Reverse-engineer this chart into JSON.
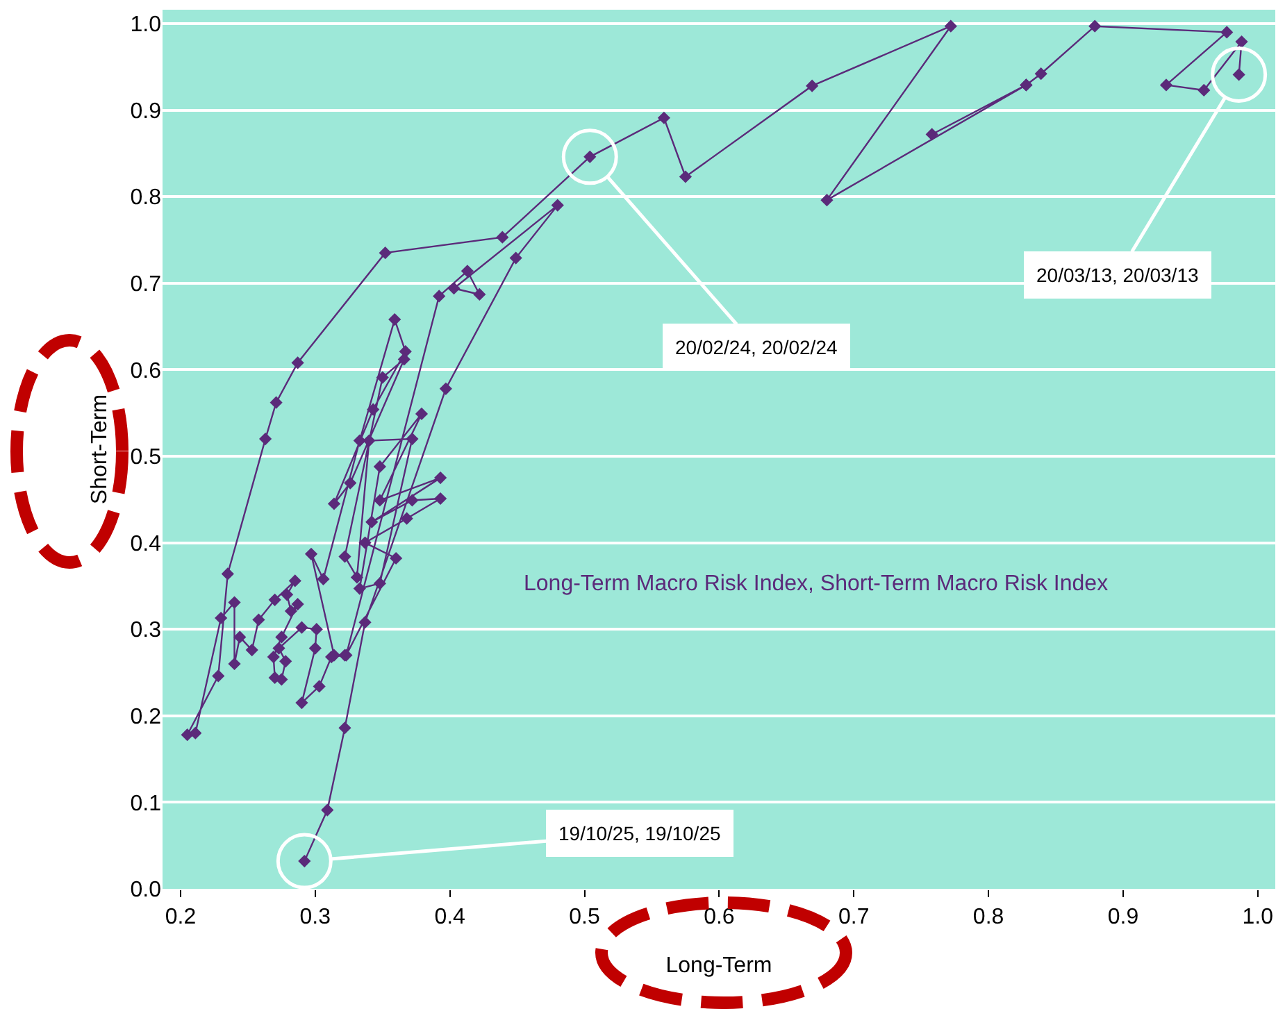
{
  "chart_data": {
    "type": "line",
    "xlabel": "Long-Term",
    "ylabel": "Short-Term",
    "xlim": [
      0.1866,
      1.013
    ],
    "ylim": [
      0,
      1.016
    ],
    "xticks": [
      0.2,
      0.3,
      0.4,
      0.5,
      0.6,
      0.7,
      0.8,
      0.9,
      {
        "value": 1.0,
        "label": "1.0"
      }
    ],
    "yticks": [
      {
        "value": 0,
        "label": "0.0"
      },
      0.1,
      0.2,
      0.3,
      0.4,
      0.5,
      0.6,
      0.7,
      0.8,
      0.9,
      {
        "value": 1.0,
        "label": "1.0"
      }
    ],
    "grid": "y",
    "legend": false,
    "marker": "diamond",
    "line_style": "solid",
    "series": [
      {
        "name": "Long-Term Macro Risk Index, Short-Term Macro Risk Index",
        "color": "#5b2a7a",
        "x": [
          0.986,
          0.988,
          0.96,
          0.932,
          0.977,
          0.879,
          0.839,
          0.828,
          0.758,
          0.828,
          0.68,
          0.772,
          0.669,
          0.575,
          0.559,
          0.504,
          0.439,
          0.352,
          0.287,
          0.271,
          0.263,
          0.235,
          0.228,
          0.205,
          0.211,
          0.23,
          0.24,
          0.24,
          0.244,
          0.253,
          0.258,
          0.27,
          0.285,
          0.279,
          0.282,
          0.287,
          0.275,
          0.269,
          0.27,
          0.275,
          0.278,
          0.273,
          0.29,
          0.301,
          0.3,
          0.29,
          0.303,
          0.312,
          0.322,
          0.314,
          0.297,
          0.306,
          0.333,
          0.359,
          0.367,
          0.343,
          0.314,
          0.326,
          0.366,
          0.35,
          0.322,
          0.331,
          0.34,
          0.372,
          0.348,
          0.333,
          0.348,
          0.379,
          0.348,
          0.393,
          0.342,
          0.372,
          0.393,
          0.368,
          0.337,
          0.36,
          0.323,
          0.392,
          0.413,
          0.422,
          0.403,
          0.48,
          0.449,
          0.397,
          0.337,
          0.322,
          0.309,
          0.292
        ],
        "values": [
          0.941,
          0.979,
          0.923,
          0.929,
          0.99,
          0.997,
          0.942,
          0.929,
          0.872,
          0.929,
          0.796,
          0.997,
          0.928,
          0.823,
          0.891,
          0.846,
          0.753,
          0.735,
          0.608,
          0.562,
          0.52,
          0.364,
          0.246,
          0.178,
          0.18,
          0.313,
          0.331,
          0.26,
          0.291,
          0.276,
          0.311,
          0.334,
          0.356,
          0.34,
          0.321,
          0.329,
          0.291,
          0.268,
          0.244,
          0.242,
          0.263,
          0.278,
          0.302,
          0.3,
          0.278,
          0.215,
          0.234,
          0.268,
          0.27,
          0.27,
          0.387,
          0.358,
          0.518,
          0.658,
          0.621,
          0.554,
          0.445,
          0.469,
          0.612,
          0.591,
          0.384,
          0.36,
          0.518,
          0.52,
          0.353,
          0.347,
          0.488,
          0.549,
          0.449,
          0.475,
          0.424,
          0.449,
          0.451,
          0.428,
          0.4,
          0.382,
          0.27,
          0.685,
          0.714,
          0.687,
          0.694,
          0.79,
          0.729,
          0.578,
          0.308,
          0.186,
          0.091,
          0.032
        ]
      }
    ],
    "annotations": [
      {
        "text": "20/03/13, 20/03/13",
        "x": 0.986,
        "y": 0.941
      },
      {
        "text": "20/02/24, 20/02/24",
        "x": 0.504,
        "y": 0.846
      },
      {
        "text": "19/10/25, 19/10/25",
        "x": 0.292,
        "y": 0.032
      }
    ]
  }
}
